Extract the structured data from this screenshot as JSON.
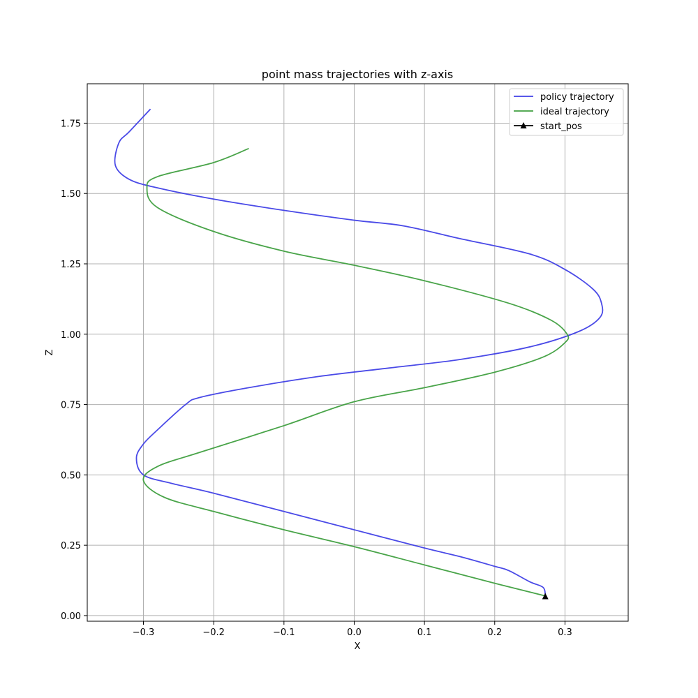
{
  "chart_data": {
    "type": "line",
    "title": "point mass trajectories with z-axis",
    "xlabel": "X",
    "ylabel": "Z",
    "xlim": [
      -0.38,
      0.39
    ],
    "ylim": [
      -0.02,
      1.89
    ],
    "grid": true,
    "legend_position": "top-right",
    "xticks": [
      -0.3,
      -0.2,
      -0.1,
      0.0,
      0.1,
      0.2,
      0.3
    ],
    "xtick_labels": [
      "−0.3",
      "−0.2",
      "−0.1",
      "0.0",
      "0.1",
      "0.2",
      "0.3"
    ],
    "yticks": [
      0.0,
      0.25,
      0.5,
      0.75,
      1.0,
      1.25,
      1.5,
      1.75
    ],
    "ytick_labels": [
      "0.00",
      "0.25",
      "0.50",
      "0.75",
      "1.00",
      "1.25",
      "1.50",
      "1.75"
    ],
    "series": [
      {
        "name": "policy trajectory",
        "color": "#4040e6",
        "marker": "none",
        "points": [
          [
            0.272,
            0.07
          ],
          [
            0.269,
            0.1
          ],
          [
            0.25,
            0.12
          ],
          [
            0.22,
            0.16
          ],
          [
            0.2,
            0.175
          ],
          [
            0.15,
            0.21
          ],
          [
            0.1,
            0.24
          ],
          [
            0.0,
            0.305
          ],
          [
            -0.1,
            0.37
          ],
          [
            -0.2,
            0.435
          ],
          [
            -0.26,
            0.47
          ],
          [
            -0.3,
            0.5
          ],
          [
            -0.31,
            0.56
          ],
          [
            -0.3,
            0.61
          ],
          [
            -0.28,
            0.66
          ],
          [
            -0.24,
            0.75
          ],
          [
            -0.22,
            0.775
          ],
          [
            -0.15,
            0.81
          ],
          [
            -0.05,
            0.85
          ],
          [
            0.05,
            0.88
          ],
          [
            0.15,
            0.91
          ],
          [
            0.25,
            0.955
          ],
          [
            0.32,
            1.01
          ],
          [
            0.35,
            1.06
          ],
          [
            0.352,
            1.11
          ],
          [
            0.34,
            1.16
          ],
          [
            0.3,
            1.23
          ],
          [
            0.25,
            1.285
          ],
          [
            0.15,
            1.34
          ],
          [
            0.07,
            1.385
          ],
          [
            0.0,
            1.405
          ],
          [
            -0.1,
            1.44
          ],
          [
            -0.2,
            1.48
          ],
          [
            -0.28,
            1.52
          ],
          [
            -0.32,
            1.55
          ],
          [
            -0.34,
            1.6
          ],
          [
            -0.335,
            1.68
          ],
          [
            -0.32,
            1.72
          ],
          [
            -0.29,
            1.8
          ]
        ]
      },
      {
        "name": "ideal trajectory",
        "color": "#3f9f3f",
        "marker": "none",
        "points": [
          [
            0.272,
            0.07
          ],
          [
            0.2,
            0.115
          ],
          [
            0.1,
            0.18
          ],
          [
            0.0,
            0.245
          ],
          [
            -0.1,
            0.305
          ],
          [
            -0.2,
            0.37
          ],
          [
            -0.27,
            0.42
          ],
          [
            -0.3,
            0.48
          ],
          [
            -0.28,
            0.53
          ],
          [
            -0.22,
            0.58
          ],
          [
            -0.1,
            0.675
          ],
          [
            0.0,
            0.76
          ],
          [
            0.1,
            0.81
          ],
          [
            0.2,
            0.865
          ],
          [
            0.27,
            0.92
          ],
          [
            0.3,
            0.97
          ],
          [
            0.303,
            1.0
          ],
          [
            0.28,
            1.05
          ],
          [
            0.22,
            1.11
          ],
          [
            0.1,
            1.19
          ],
          [
            0.0,
            1.245
          ],
          [
            -0.1,
            1.295
          ],
          [
            -0.2,
            1.365
          ],
          [
            -0.28,
            1.45
          ],
          [
            -0.295,
            1.52
          ],
          [
            -0.28,
            1.56
          ],
          [
            -0.2,
            1.61
          ],
          [
            -0.15,
            1.66
          ]
        ]
      },
      {
        "name": "start_pos",
        "color": "#000000",
        "marker": "triangle",
        "points": [
          [
            0.272,
            0.068
          ]
        ]
      }
    ]
  }
}
